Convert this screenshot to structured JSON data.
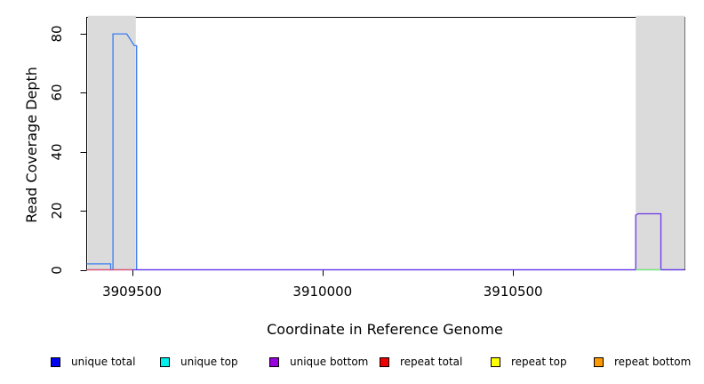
{
  "figure": {
    "xlabel": "Coordinate in Reference Genome",
    "ylabel": "Read Coverage Depth"
  },
  "legend": {
    "items": [
      {
        "label": "unique total",
        "color": "#0000EE"
      },
      {
        "label": "unique top",
        "color": "#00EEEE"
      },
      {
        "label": "unique bottom",
        "color": "#9A00DD"
      },
      {
        "label": "repeat total",
        "color": "#EE0000"
      },
      {
        "label": "repeat top",
        "color": "#FFFF00"
      },
      {
        "label": "repeat bottom",
        "color": "#FF9900"
      }
    ]
  },
  "chart_data": {
    "type": "line",
    "title": "",
    "xlabel": "Coordinate in Reference Genome",
    "ylabel": "Read Coverage Depth",
    "xlim": [
      3909381,
      3910951
    ],
    "ylim": [
      0,
      85.6
    ],
    "x_ticks": [
      3909500,
      3910000,
      3910500
    ],
    "y_ticks": [
      0,
      20,
      40,
      60,
      80
    ],
    "grid": false,
    "legend_position": "bottom",
    "repeat_region_color": "#DBDBDB",
    "repeat_regions": [
      [
        3909384,
        3909510
      ],
      [
        3910822,
        3910951
      ]
    ],
    "series": [
      {
        "name": "unique total",
        "color": "#3B7CF0",
        "points": [
          [
            3909381,
            2
          ],
          [
            3909444,
            2
          ],
          [
            3909444,
            0
          ],
          [
            3909450,
            0
          ],
          [
            3909450,
            80
          ],
          [
            3909486,
            80
          ],
          [
            3909491,
            79
          ],
          [
            3909496,
            78
          ],
          [
            3909501,
            77
          ],
          [
            3909506,
            76
          ],
          [
            3909512,
            76
          ],
          [
            3909512,
            0
          ],
          [
            3910951,
            0
          ]
        ]
      },
      {
        "name": "unique bottom",
        "color": "#6B35E8",
        "points": [
          [
            3909381,
            0
          ],
          [
            3910822,
            0
          ],
          [
            3910822,
            18.5
          ],
          [
            3910828,
            19
          ],
          [
            3910888,
            19
          ],
          [
            3910888,
            0
          ],
          [
            3910951,
            0
          ]
        ]
      },
      {
        "name": "repeat top",
        "color": "#FFFF00",
        "points": [
          [
            3910822,
            0
          ],
          [
            3910888,
            0
          ]
        ]
      },
      {
        "name": "unique top",
        "color": "#00DDDD",
        "opacity": 0.55,
        "points": [
          [
            3910822,
            0
          ],
          [
            3910888,
            0
          ]
        ]
      },
      {
        "name": "repeat total",
        "color": "#E8566B",
        "points": [
          [
            3909381,
            0
          ],
          [
            3909500,
            0
          ]
        ]
      },
      {
        "name": "repeat bottom",
        "color": "#FF9900",
        "points": []
      }
    ]
  }
}
